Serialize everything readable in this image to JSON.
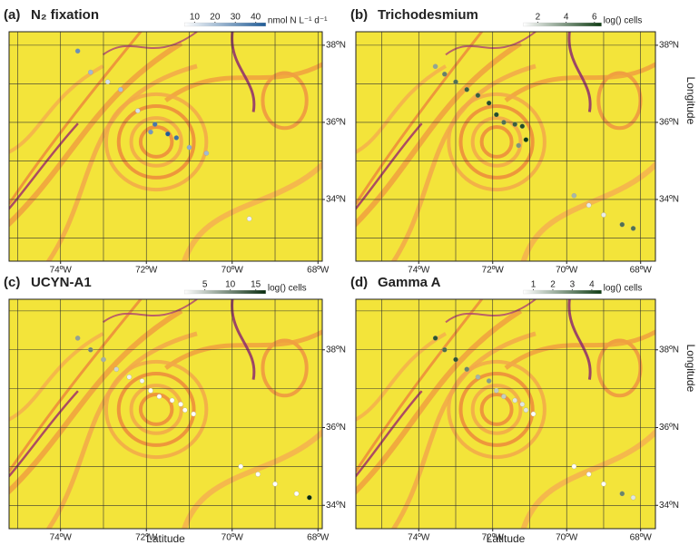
{
  "panels": [
    {
      "label": "(a)",
      "title": "N₂ fixation",
      "colorbar": {
        "ticks": [
          10,
          20,
          30,
          40
        ],
        "range": [
          5,
          45
        ],
        "unit": "nmol N L⁻¹ d⁻¹",
        "cmap": [
          "#ffffff",
          "#1f5b96"
        ]
      },
      "lonlim": [
        -75.2,
        -67.9
      ],
      "latlim": [
        32.4,
        38.35
      ],
      "lon_ticks": [
        {
          "value": -74,
          "label": "74ºW"
        },
        {
          "value": -72,
          "label": "72ºW"
        },
        {
          "value": -70,
          "label": "70ºW"
        },
        {
          "value": -68,
          "label": "68ºW"
        }
      ],
      "lat_ticks": [
        {
          "value": 38,
          "label": "38ºN"
        },
        {
          "value": 36,
          "label": "36ºN"
        },
        {
          "value": 34,
          "label": "34ºN"
        }
      ],
      "lon": [
        -73.6,
        -73.3,
        -72.9,
        -72.6,
        -72.2,
        -71.9,
        -71.8,
        -71.5,
        -71.3,
        -71.0,
        -70.6,
        -69.6
      ],
      "lat": [
        37.85,
        37.3,
        37.05,
        36.85,
        36.3,
        35.75,
        35.95,
        35.7,
        35.6,
        35.35,
        35.2,
        33.5
      ],
      "values": [
        32,
        22,
        12,
        20,
        12,
        30,
        38,
        45,
        40,
        25,
        22,
        8
      ]
    },
    {
      "label": "(b)",
      "title": "Trichodesmium",
      "colorbar": {
        "ticks": [
          2,
          4,
          6
        ],
        "range": [
          1,
          6.5
        ],
        "unit": "log() cells",
        "cmap": [
          "#ffffff",
          "#0d3b12"
        ]
      },
      "lonlim": [
        -75.7,
        -67.6
      ],
      "latlim": [
        32.4,
        38.35
      ],
      "y_label": "Longitude",
      "lon_ticks": [
        {
          "value": -74,
          "label": "74ºW"
        },
        {
          "value": -72,
          "label": "72ºW"
        },
        {
          "value": -70,
          "label": "70ºW"
        },
        {
          "value": -68,
          "label": "68ºW"
        }
      ],
      "lat_ticks": [
        {
          "value": 38,
          "label": "38ºN"
        },
        {
          "value": 36,
          "label": "36ºN"
        },
        {
          "value": 34,
          "label": "34ºN"
        }
      ],
      "lon": [
        -73.55,
        -73.3,
        -73.0,
        -72.7,
        -72.4,
        -72.1,
        -71.9,
        -71.7,
        -71.4,
        -71.2,
        -71.1,
        -71.3,
        -69.8,
        -69.4,
        -69.0,
        -68.5,
        -68.2
      ],
      "lat": [
        37.45,
        37.25,
        37.05,
        36.85,
        36.7,
        36.5,
        36.2,
        36.0,
        35.95,
        35.9,
        35.55,
        35.4,
        34.1,
        33.85,
        33.6,
        33.35,
        33.25
      ],
      "values": [
        3.5,
        4.5,
        5,
        5.5,
        5.5,
        6,
        6,
        5,
        5.5,
        6,
        6.5,
        4,
        3,
        1.5,
        1.5,
        5,
        5
      ]
    },
    {
      "label": "(c)",
      "title": "UCYN-A1",
      "colorbar": {
        "ticks": [
          5,
          10,
          15
        ],
        "range": [
          1,
          17
        ],
        "unit": "log() cells",
        "cmap": [
          "#ffffff",
          "#062a0c"
        ]
      },
      "lonlim": [
        -75.2,
        -67.9
      ],
      "latlim": [
        33.4,
        39.3
      ],
      "x_label": "Latitude",
      "lon_ticks": [
        {
          "value": -74,
          "label": "74ºW"
        },
        {
          "value": -72,
          "label": "72ºW"
        },
        {
          "value": -70,
          "label": "70ºW"
        },
        {
          "value": -68,
          "label": "68ºW"
        }
      ],
      "lat_ticks": [
        {
          "value": 38,
          "label": "38ºN"
        },
        {
          "value": 36,
          "label": "36ºN"
        },
        {
          "value": 34,
          "label": "34ºN"
        }
      ],
      "lon": [
        -73.6,
        -73.3,
        -73.0,
        -72.7,
        -72.4,
        -72.1,
        -71.9,
        -71.7,
        -71.4,
        -71.2,
        -71.1,
        -70.9,
        -69.8,
        -69.4,
        -69.0,
        -68.5,
        -68.2
      ],
      "lat": [
        38.3,
        38.0,
        37.75,
        37.5,
        37.3,
        37.2,
        36.95,
        36.8,
        36.7,
        36.6,
        36.45,
        36.35,
        35.0,
        34.8,
        34.55,
        34.3,
        34.2
      ],
      "values": [
        8,
        10,
        7,
        4,
        2,
        1.5,
        1,
        1,
        1,
        1,
        1,
        1,
        1,
        1,
        1,
        1,
        17
      ]
    },
    {
      "label": "(d)",
      "title": "Gamma A",
      "colorbar": {
        "ticks": [
          1,
          2,
          3,
          4
        ],
        "range": [
          0.5,
          4.5
        ],
        "unit": "log() cells",
        "cmap": [
          "#ffffff",
          "#0d3b12"
        ]
      },
      "lonlim": [
        -75.7,
        -67.6
      ],
      "latlim": [
        33.4,
        39.3
      ],
      "x_label": "Latitude",
      "y_label": "Longitude",
      "lon_ticks": [
        {
          "value": -74,
          "label": "74ºW"
        },
        {
          "value": -72,
          "label": "72ºW"
        },
        {
          "value": -70,
          "label": "70ºW"
        },
        {
          "value": -68,
          "label": "68ºW"
        }
      ],
      "lat_ticks": [
        {
          "value": 38,
          "label": "38ºN"
        },
        {
          "value": 36,
          "label": "36ºN"
        },
        {
          "value": 34,
          "label": "34ºN"
        }
      ],
      "lon": [
        -73.55,
        -73.3,
        -73.0,
        -72.7,
        -72.4,
        -72.1,
        -71.9,
        -71.7,
        -71.4,
        -71.2,
        -71.1,
        -70.9,
        -69.8,
        -69.4,
        -69.0,
        -68.5,
        -68.2
      ],
      "lat": [
        38.3,
        38.0,
        37.75,
        37.5,
        37.3,
        37.2,
        36.95,
        36.8,
        36.7,
        36.6,
        36.45,
        36.35,
        35.0,
        34.8,
        34.55,
        34.3,
        34.2
      ],
      "values": [
        4,
        3.5,
        4,
        3,
        2,
        2.5,
        1.5,
        1.5,
        1,
        1,
        1,
        0.5,
        0.5,
        0.5,
        0.5,
        3,
        1
      ]
    }
  ]
}
